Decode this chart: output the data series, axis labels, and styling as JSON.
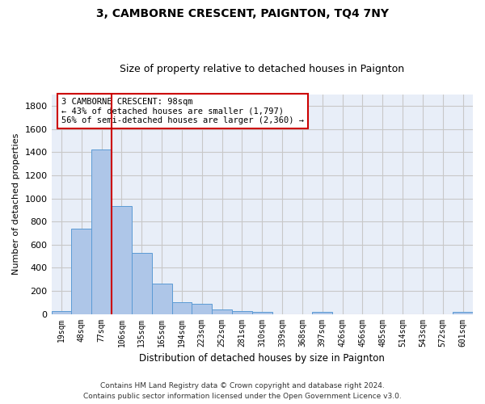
{
  "title": "3, CAMBORNE CRESCENT, PAIGNTON, TQ4 7NY",
  "subtitle": "Size of property relative to detached houses in Paignton",
  "xlabel": "Distribution of detached houses by size in Paignton",
  "ylabel": "Number of detached properties",
  "footer_line1": "Contains HM Land Registry data © Crown copyright and database right 2024.",
  "footer_line2": "Contains public sector information licensed under the Open Government Licence v3.0.",
  "categories": [
    "19sqm",
    "48sqm",
    "77sqm",
    "106sqm",
    "135sqm",
    "165sqm",
    "194sqm",
    "223sqm",
    "252sqm",
    "281sqm",
    "310sqm",
    "339sqm",
    "368sqm",
    "397sqm",
    "426sqm",
    "456sqm",
    "485sqm",
    "514sqm",
    "543sqm",
    "572sqm",
    "601sqm"
  ],
  "values": [
    22,
    740,
    1420,
    935,
    530,
    265,
    105,
    90,
    38,
    28,
    15,
    0,
    0,
    15,
    0,
    0,
    0,
    0,
    0,
    0,
    15
  ],
  "bar_color": "#aec6e8",
  "bar_edge_color": "#5b9bd5",
  "grid_color": "#c8c8c8",
  "vline_x_index": 2.5,
  "vline_color": "#cc0000",
  "annotation_text": "3 CAMBORNE CRESCENT: 98sqm\n← 43% of detached houses are smaller (1,797)\n56% of semi-detached houses are larger (2,360) →",
  "annotation_box_color": "#cc0000",
  "ylim": [
    0,
    1900
  ],
  "yticks": [
    0,
    200,
    400,
    600,
    800,
    1000,
    1200,
    1400,
    1600,
    1800
  ],
  "bg_color": "#ffffff",
  "plot_bg_color": "#e8eef8"
}
